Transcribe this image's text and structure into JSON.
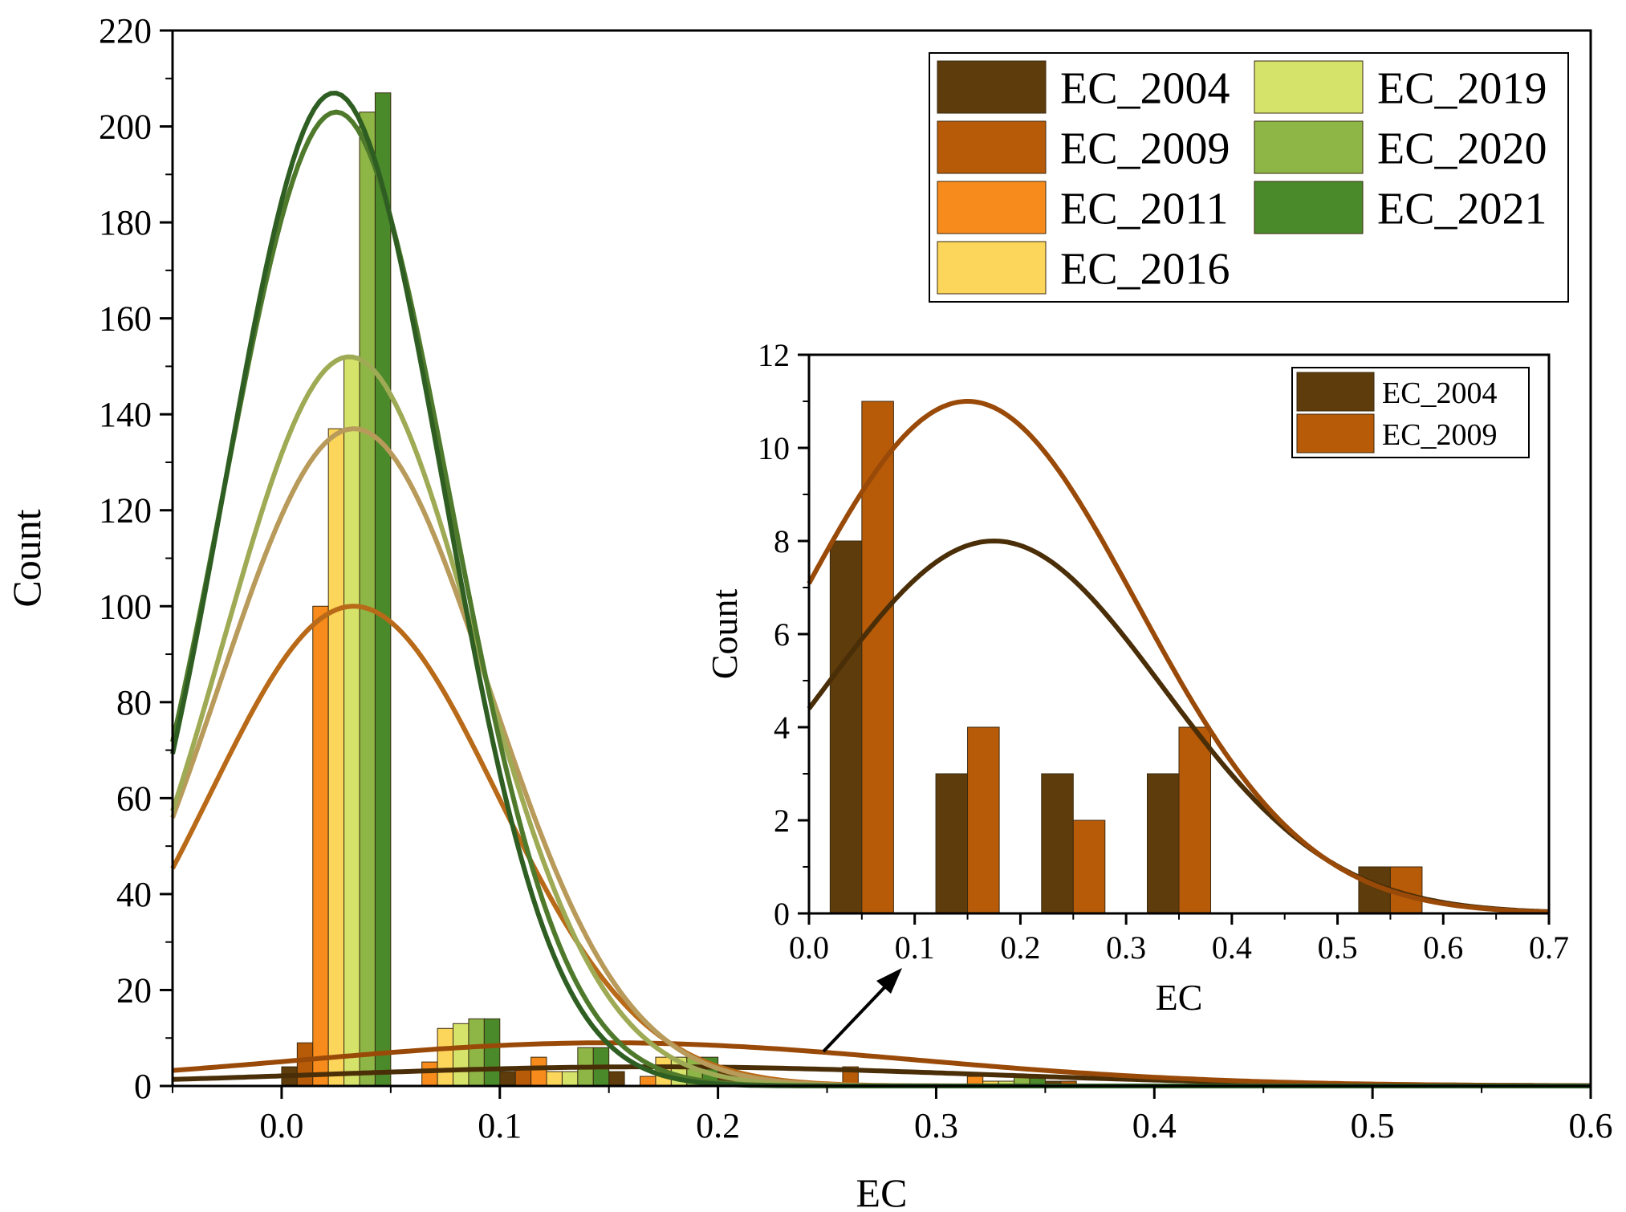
{
  "chart_data": [
    {
      "type": "bar",
      "xlabel": "EC",
      "ylabel": "Count",
      "xlim": [
        -0.05,
        0.6
      ],
      "ylim": [
        0,
        220
      ],
      "xticks": [
        "0.0",
        "0.1",
        "0.2",
        "0.3",
        "0.4",
        "0.5",
        "0.6"
      ],
      "yticks": [
        "0",
        "20",
        "40",
        "60",
        "80",
        "100",
        "120",
        "140",
        "160",
        "180",
        "200",
        "220"
      ],
      "legend_position": "top-right",
      "legend_columns": 2,
      "bin_width": 0.05,
      "series": [
        {
          "name": "EC_2004",
          "color": "#5e3c0b",
          "curve_color": "#4a2e08",
          "bins": [
            {
              "x": 0.0,
              "y": 4
            },
            {
              "x": 0.1,
              "y": 3
            },
            {
              "x": 0.15,
              "y": 3
            },
            {
              "x": 0.2,
              "y": 3
            },
            {
              "x": 0.35,
              "y": 1
            }
          ],
          "fit": {
            "mean": 0.17,
            "sd": 0.15,
            "peak": 4
          }
        },
        {
          "name": "EC_2009",
          "color": "#b85b09",
          "curve_color": "#9a4a08",
          "bins": [
            {
              "x": 0.0,
              "y": 9
            },
            {
              "x": 0.1,
              "y": 4
            },
            {
              "x": 0.2,
              "y": 2
            },
            {
              "x": 0.25,
              "y": 4
            },
            {
              "x": 0.35,
              "y": 1
            }
          ],
          "fit": {
            "mean": 0.15,
            "sd": 0.14,
            "peak": 9
          }
        },
        {
          "name": "EC_2011",
          "color": "#f78b1b",
          "curve_color": "#b86a18",
          "bins": [
            {
              "x": 0.0,
              "y": 100
            },
            {
              "x": 0.05,
              "y": 5
            },
            {
              "x": 0.1,
              "y": 6
            },
            {
              "x": 0.15,
              "y": 2
            },
            {
              "x": 0.3,
              "y": 2
            }
          ],
          "fit": {
            "mean": 0.033,
            "sd": 0.066,
            "peak": 100
          }
        },
        {
          "name": "EC_2016",
          "color": "#fbd65b",
          "curve_color": "#b89a5a",
          "bins": [
            {
              "x": 0.0,
              "y": 137
            },
            {
              "x": 0.05,
              "y": 12
            },
            {
              "x": 0.1,
              "y": 3
            },
            {
              "x": 0.15,
              "y": 6
            },
            {
              "x": 0.3,
              "y": 1
            }
          ],
          "fit": {
            "mean": 0.033,
            "sd": 0.062,
            "peak": 137
          }
        },
        {
          "name": "EC_2019",
          "color": "#d6e36b",
          "curve_color": "#9faa55",
          "bins": [
            {
              "x": 0.0,
              "y": 152
            },
            {
              "x": 0.05,
              "y": 13
            },
            {
              "x": 0.1,
              "y": 3
            },
            {
              "x": 0.15,
              "y": 6
            },
            {
              "x": 0.3,
              "y": 1
            }
          ],
          "fit": {
            "mean": 0.031,
            "sd": 0.058,
            "peak": 152
          }
        },
        {
          "name": "EC_2020",
          "color": "#8db646",
          "curve_color": "#4f7a2c",
          "bins": [
            {
              "x": 0.0,
              "y": 203
            },
            {
              "x": 0.05,
              "y": 14
            },
            {
              "x": 0.1,
              "y": 8
            },
            {
              "x": 0.15,
              "y": 6
            },
            {
              "x": 0.3,
              "y": 2
            }
          ],
          "fit": {
            "mean": 0.025,
            "sd": 0.052,
            "peak": 203
          }
        },
        {
          "name": "EC_2021",
          "color": "#4a8a2a",
          "curve_color": "#2f5e22",
          "bins": [
            {
              "x": 0.0,
              "y": 207
            },
            {
              "x": 0.05,
              "y": 14
            },
            {
              "x": 0.1,
              "y": 8
            },
            {
              "x": 0.15,
              "y": 6
            },
            {
              "x": 0.3,
              "y": 2
            }
          ],
          "fit": {
            "mean": 0.024,
            "sd": 0.05,
            "peak": 207
          }
        }
      ]
    },
    {
      "type": "bar",
      "inset": true,
      "xlabel": "EC",
      "ylabel": "Count",
      "xlim": [
        0.0,
        0.7
      ],
      "ylim": [
        0,
        12
      ],
      "xticks": [
        "0.0",
        "0.1",
        "0.2",
        "0.3",
        "0.4",
        "0.5",
        "0.6",
        "0.7"
      ],
      "yticks": [
        "0",
        "2",
        "4",
        "6",
        "8",
        "10",
        "12"
      ],
      "legend_position": "top-right",
      "bin_width": 0.03,
      "series": [
        {
          "name": "EC_2004",
          "color": "#5e3c0b",
          "curve_color": "#4a2e08",
          "bins": [
            {
              "x": 0.02,
              "y": 8
            },
            {
              "x": 0.12,
              "y": 3
            },
            {
              "x": 0.22,
              "y": 3
            },
            {
              "x": 0.32,
              "y": 3
            },
            {
              "x": 0.52,
              "y": 1
            }
          ],
          "fit": {
            "mean": 0.175,
            "sd": 0.16,
            "peak": 8
          }
        },
        {
          "name": "EC_2009",
          "color": "#b85b09",
          "curve_color": "#9a4a08",
          "bins": [
            {
              "x": 0.05,
              "y": 11
            },
            {
              "x": 0.15,
              "y": 4
            },
            {
              "x": 0.25,
              "y": 2
            },
            {
              "x": 0.35,
              "y": 4
            },
            {
              "x": 0.55,
              "y": 1
            }
          ],
          "fit": {
            "mean": 0.15,
            "sd": 0.16,
            "peak": 11
          }
        }
      ]
    }
  ]
}
